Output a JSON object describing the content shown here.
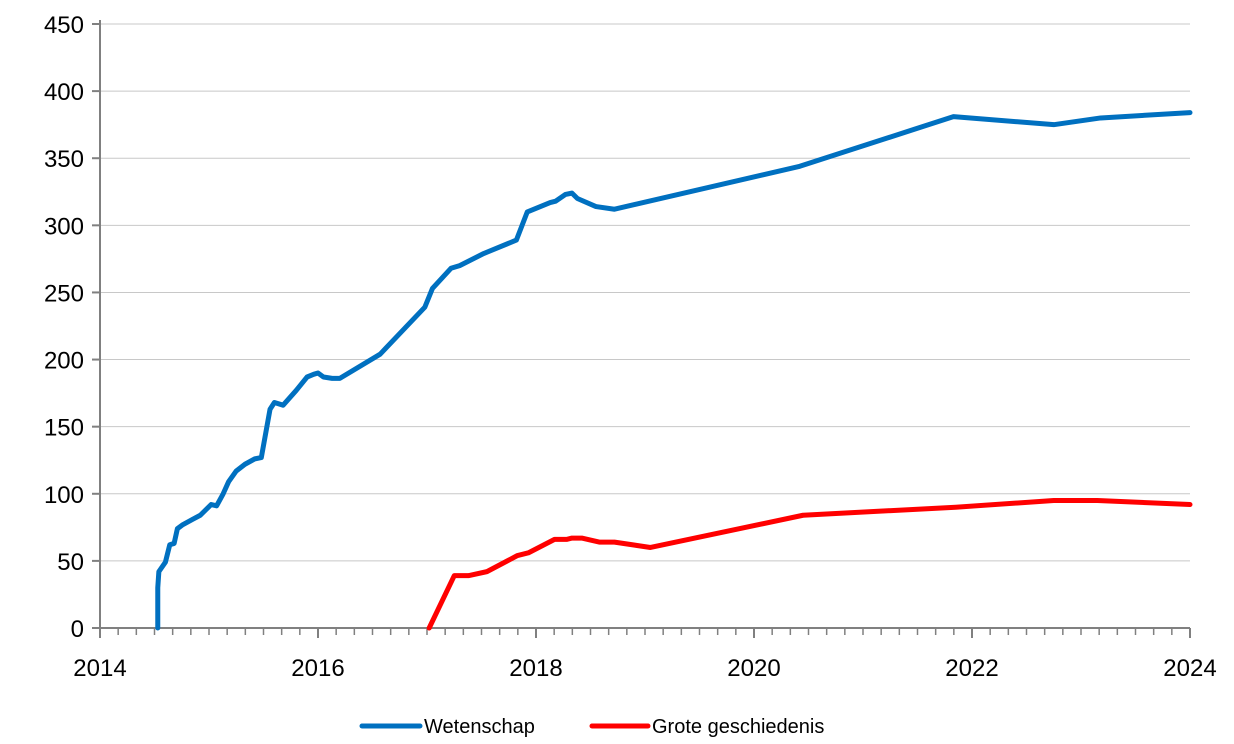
{
  "chart_data": {
    "type": "line",
    "title": "",
    "xlabel": "",
    "ylabel": "",
    "xlim": [
      2014,
      2024
    ],
    "ylim": [
      0,
      450
    ],
    "x_ticks": [
      "2014",
      "2016",
      "2018",
      "2020",
      "2022",
      "2024"
    ],
    "y_ticks": [
      "0",
      "50",
      "100",
      "150",
      "200",
      "250",
      "300",
      "350",
      "400",
      "450"
    ],
    "grid": "horizontal",
    "legend_position": "bottom",
    "series": [
      {
        "name": "Wetenschap",
        "color": "#0070C0",
        "points": [
          [
            2014.53,
            0
          ],
          [
            2014.53,
            30
          ],
          [
            2014.54,
            42
          ],
          [
            2014.6,
            49
          ],
          [
            2014.64,
            62
          ],
          [
            2014.68,
            63
          ],
          [
            2014.71,
            74
          ],
          [
            2014.76,
            77
          ],
          [
            2014.85,
            81
          ],
          [
            2014.92,
            84
          ],
          [
            2014.97,
            88
          ],
          [
            2015.02,
            92
          ],
          [
            2015.07,
            91
          ],
          [
            2015.13,
            100
          ],
          [
            2015.18,
            109
          ],
          [
            2015.25,
            117
          ],
          [
            2015.33,
            122
          ],
          [
            2015.42,
            126
          ],
          [
            2015.48,
            127
          ],
          [
            2015.56,
            163
          ],
          [
            2015.6,
            168
          ],
          [
            2015.68,
            166
          ],
          [
            2015.8,
            177
          ],
          [
            2015.9,
            187
          ],
          [
            2015.96,
            189
          ],
          [
            2016.0,
            190
          ],
          [
            2016.05,
            187
          ],
          [
            2016.13,
            186
          ],
          [
            2016.2,
            186
          ],
          [
            2016.57,
            204
          ],
          [
            2016.98,
            239
          ],
          [
            2017.05,
            253
          ],
          [
            2017.22,
            268
          ],
          [
            2017.3,
            270
          ],
          [
            2017.52,
            279
          ],
          [
            2017.82,
            289
          ],
          [
            2017.92,
            310
          ],
          [
            2018.13,
            317
          ],
          [
            2018.18,
            318
          ],
          [
            2018.27,
            323
          ],
          [
            2018.33,
            324
          ],
          [
            2018.38,
            320
          ],
          [
            2018.55,
            314
          ],
          [
            2018.72,
            312
          ],
          [
            2020.42,
            344
          ],
          [
            2021.83,
            381
          ],
          [
            2022.75,
            375
          ],
          [
            2023.18,
            380
          ],
          [
            2024.0,
            384
          ]
        ]
      },
      {
        "name": "Grote geschiedenis",
        "color": "#FF0000",
        "points": [
          [
            2017.02,
            0
          ],
          [
            2017.25,
            39
          ],
          [
            2017.38,
            39
          ],
          [
            2017.55,
            42
          ],
          [
            2017.83,
            54
          ],
          [
            2017.93,
            56
          ],
          [
            2018.17,
            66
          ],
          [
            2018.28,
            66
          ],
          [
            2018.33,
            67
          ],
          [
            2018.42,
            67
          ],
          [
            2018.58,
            64
          ],
          [
            2018.72,
            64
          ],
          [
            2019.05,
            60
          ],
          [
            2020.45,
            84
          ],
          [
            2021.85,
            90
          ],
          [
            2022.75,
            95
          ],
          [
            2023.15,
            95
          ],
          [
            2024.0,
            92
          ]
        ]
      }
    ]
  }
}
